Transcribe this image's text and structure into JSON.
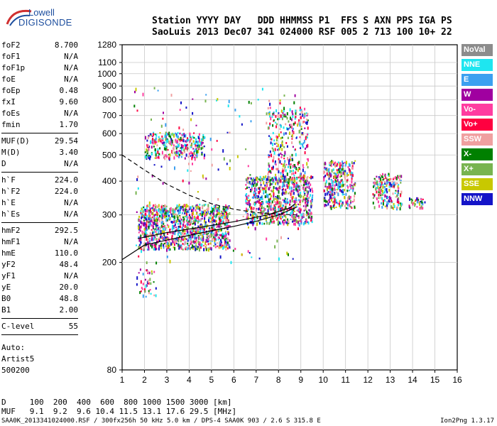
{
  "logo": {
    "line1": "Lowell",
    "line2": "DIGISONDE"
  },
  "header": {
    "labels": "Station YYYY DAY   DDD HHMMSS P1  FFS S AXN PPS IGA PS",
    "values": "SaoLuis 2013 Dec07 341 024000 RSF 005 2 713 100 10+ 22"
  },
  "params": [
    {
      "label": "foF2",
      "value": "8.700"
    },
    {
      "label": "foF1",
      "value": "N/A"
    },
    {
      "label": "foF1p",
      "value": "N/A"
    },
    {
      "label": "foE",
      "value": "N/A"
    },
    {
      "label": "foEp",
      "value": "0.48"
    },
    {
      "label": "fxI",
      "value": "9.60"
    },
    {
      "label": "foEs",
      "value": "N/A"
    },
    {
      "label": "fmin",
      "value": "1.70"
    },
    {
      "sep": true
    },
    {
      "label": "MUF(D)",
      "value": "29.54"
    },
    {
      "label": "M(D)",
      "value": "3.40"
    },
    {
      "label": "D",
      "value": "N/A"
    },
    {
      "sep": true
    },
    {
      "label": "h`F",
      "value": "224.0"
    },
    {
      "label": "h`F2",
      "value": "224.0"
    },
    {
      "label": "h`E",
      "value": "N/A"
    },
    {
      "label": "h`Es",
      "value": "N/A"
    },
    {
      "sep": true
    },
    {
      "label": "hmF2",
      "value": "292.5"
    },
    {
      "label": "hmF1",
      "value": "N/A"
    },
    {
      "label": "hmE",
      "value": "110.0"
    },
    {
      "label": "yF2",
      "value": "48.4"
    },
    {
      "label": "yF1",
      "value": "N/A"
    },
    {
      "label": "yE",
      "value": "20.0"
    },
    {
      "label": "B0",
      "value": "48.8"
    },
    {
      "label": "B1",
      "value": "2.00"
    },
    {
      "sep": true
    },
    {
      "label": "C-level",
      "value": "55"
    },
    {
      "sep": true
    }
  ],
  "auto": {
    "line1": "Auto:",
    "line2": "Artist5",
    "line3": "500200"
  },
  "dmuf": {
    "d_row": "D     100  200  400  600  800 1000 1500 3000 [km]",
    "muf_row": "MUF   9.1  9.2  9.6 10.4 11.5 13.1 17.6 29.5 [MHz]"
  },
  "footer": {
    "left": "SAA0K_2013341024000.RSF / 300fx256h 50 kHz 5.0 km / DPS-4 SAA0K 903 / 2.6 S 315.8 E",
    "right": "Ion2Png 1.3.17"
  },
  "legend": [
    {
      "label": "NoVal",
      "color": "#8c8c8c"
    },
    {
      "label": "NNE",
      "color": "#1ee6f0"
    },
    {
      "label": "E",
      "color": "#3ca0f0"
    },
    {
      "label": "W",
      "color": "#a000a0"
    },
    {
      "label": "Vo-",
      "color": "#ff3ca0"
    },
    {
      "label": "Vo+",
      "color": "#ff0040"
    },
    {
      "label": "SSW",
      "color": "#f0a0a0"
    },
    {
      "label": "X-",
      "color": "#008000"
    },
    {
      "label": "X+",
      "color": "#78b450"
    },
    {
      "label": "SSE",
      "color": "#c8c800"
    },
    {
      "label": "NNW",
      "color": "#1414c8"
    }
  ],
  "chart_data": {
    "type": "scatter",
    "xlabel": "",
    "ylabel": "",
    "xlim": [
      1,
      16
    ],
    "ylim": [
      80,
      1280
    ],
    "x_ticks": [
      1,
      2,
      3,
      4,
      5,
      6,
      7,
      8,
      9,
      10,
      11,
      12,
      13,
      14,
      15,
      16
    ],
    "y_ticks": [
      80,
      200,
      300,
      400,
      500,
      600,
      700,
      800,
      900,
      1000,
      1100,
      1280
    ],
    "y_scale": "log",
    "grid": true,
    "trace_lines": [
      {
        "name": "lower",
        "style": "solid",
        "points": [
          [
            1,
            205
          ],
          [
            2,
            232
          ],
          [
            3,
            242
          ],
          [
            4,
            252
          ],
          [
            5,
            262
          ],
          [
            6,
            272
          ],
          [
            7,
            284
          ],
          [
            8,
            300
          ],
          [
            8.8,
            320
          ]
        ]
      },
      {
        "name": "upper",
        "style": "dashed",
        "points": [
          [
            1,
            500
          ],
          [
            2,
            440
          ],
          [
            3,
            390
          ],
          [
            4,
            355
          ],
          [
            5,
            330
          ],
          [
            6,
            315
          ],
          [
            7,
            306
          ],
          [
            8,
            302
          ],
          [
            8.8,
            300
          ]
        ]
      },
      {
        "name": "fit",
        "style": "solid",
        "points": [
          [
            1.7,
            245
          ],
          [
            3,
            258
          ],
          [
            4.5,
            270
          ],
          [
            6,
            283
          ],
          [
            7.5,
            300
          ],
          [
            8.5,
            318
          ],
          [
            8.75,
            330
          ]
        ]
      }
    ],
    "clusters": [
      {
        "x": [
          1.7,
          5.8
        ],
        "y": [
          225,
          330
        ],
        "density": 1100
      },
      {
        "x": [
          2.0,
          4.7
        ],
        "y": [
          490,
          610
        ],
        "density": 300
      },
      {
        "x": [
          6.5,
          9.5
        ],
        "y": [
          280,
          420
        ],
        "density": 700
      },
      {
        "x": [
          7.5,
          9.3
        ],
        "y": [
          400,
          760
        ],
        "density": 300
      },
      {
        "x": [
          10.0,
          11.4
        ],
        "y": [
          320,
          480
        ],
        "density": 320
      },
      {
        "x": [
          12.2,
          13.5
        ],
        "y": [
          320,
          430
        ],
        "density": 180
      },
      {
        "x": [
          13.8,
          14.6
        ],
        "y": [
          320,
          350
        ],
        "density": 40
      },
      {
        "x": [
          1.6,
          2.5
        ],
        "y": [
          150,
          190
        ],
        "density": 40
      },
      {
        "x": [
          1.5,
          9.0
        ],
        "y": [
          200,
          900
        ],
        "density": 200
      }
    ]
  }
}
